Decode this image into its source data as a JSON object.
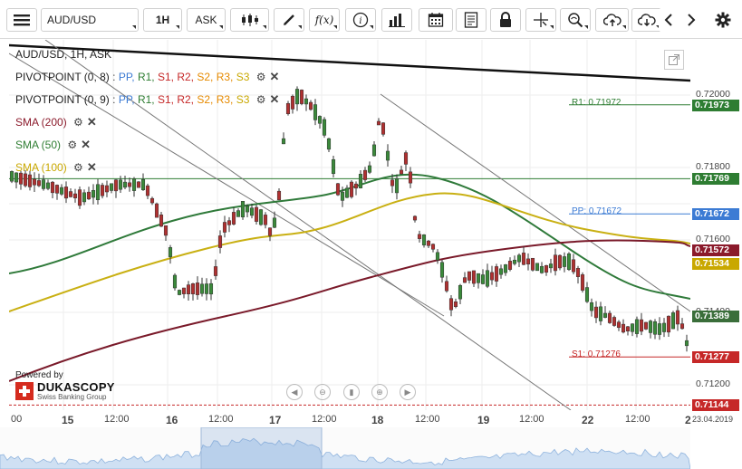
{
  "toolbar": {
    "instrument": "AUD/USD",
    "period": "1H",
    "side": "ASK",
    "fx_label": "f(x)",
    "icons": [
      "menu-icon",
      "candlestick-icon",
      "draw-pencil-icon",
      "function-icon",
      "info-icon",
      "volume-bars-icon",
      "calendar-icon",
      "report-icon",
      "lock-icon",
      "crosshair-icon",
      "zoom-icon",
      "cloud-upload-icon",
      "cloud-download-icon",
      "chevron-left-icon",
      "chevron-right-icon",
      "gear-icon"
    ]
  },
  "legend": {
    "title": "AUD/USD, 1H, ASK",
    "pivot1": {
      "name": "PIVOTPOINT (0, 8)",
      "items": [
        "PP,",
        "R1,",
        "S1,",
        "R2,",
        "S2,",
        "R3,",
        "S3"
      ]
    },
    "pivot2": {
      "name": "PIVOTPOINT (0, 9)",
      "items": [
        "PP,",
        "R1,",
        "S1,",
        "R2,",
        "S2,",
        "R3,",
        "S3"
      ]
    },
    "sma200": "SMA (200)",
    "sma50": "SMA (50)",
    "sma100": "SMA (100)",
    "item_colors": [
      "#3c7bd4",
      "#2e7d32",
      "#c62828",
      "#c62828",
      "#e68a00",
      "#e68a00",
      "#c9a800"
    ]
  },
  "levels": {
    "r1": "R1: 0.71972",
    "pp": "PP: 0.71672",
    "s1": "S1: 0.71276"
  },
  "price_axis": {
    "ticks": [
      "0.72000",
      "0.71800",
      "0.71600",
      "0.71400",
      "0.71200"
    ],
    "boxes": [
      {
        "label": "0.71973",
        "value": 0.71973,
        "color": "#2e7d32"
      },
      {
        "label": "0.71769",
        "value": 0.71769,
        "color": "#2e7d32"
      },
      {
        "label": "0.71672",
        "value": 0.71672,
        "color": "#3c7bd4"
      },
      {
        "label": "0.71572",
        "value": 0.71572,
        "color": "#8b1a2b"
      },
      {
        "label": "0.71534",
        "value": 0.71534,
        "color": "#c9a800"
      },
      {
        "label": "0.71389",
        "value": 0.71389,
        "color": "#3a6e3a"
      },
      {
        "label": "0.71277",
        "value": 0.71277,
        "color": "#c62828"
      },
      {
        "label": "0.71144",
        "value": 0.71144,
        "color": "#c62828"
      }
    ]
  },
  "time_axis": {
    "labels": [
      {
        "text": "00",
        "bold": false
      },
      {
        "text": "15",
        "bold": true
      },
      {
        "text": "12:00",
        "bold": false
      },
      {
        "text": "16",
        "bold": true
      },
      {
        "text": "12:00",
        "bold": false
      },
      {
        "text": "17",
        "bold": true
      },
      {
        "text": "12:00",
        "bold": false
      },
      {
        "text": "18",
        "bold": true
      },
      {
        "text": "12:00",
        "bold": false
      },
      {
        "text": "19",
        "bold": true
      },
      {
        "text": "12:00",
        "bold": false
      },
      {
        "text": "22",
        "bold": true
      },
      {
        "text": "12:00",
        "bold": false
      },
      {
        "text": "2",
        "bold": true
      }
    ],
    "current_date": "23.04.2019"
  },
  "branding": {
    "powered_by": "Powered by",
    "company": "DUKASCOPY",
    "tagline": "Swiss Banking Group"
  },
  "navigation": {
    "buttons": [
      "first-icon",
      "zoom-out-icon",
      "fit-icon",
      "zoom-in-icon",
      "last-icon"
    ]
  }
}
